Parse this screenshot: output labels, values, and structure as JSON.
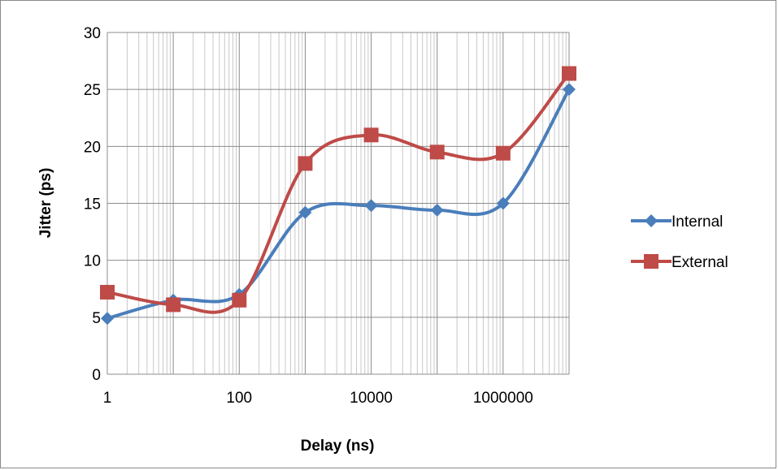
{
  "chart_data": {
    "type": "line",
    "title": "",
    "xlabel": "Delay (ns)",
    "ylabel": "Jitter (ps)",
    "x_scale": "log",
    "xlim": [
      1,
      10000000
    ],
    "ylim": [
      0,
      30
    ],
    "x_ticks": [
      1,
      100,
      10000,
      1000000
    ],
    "x_tick_labels": [
      "1",
      "100",
      "10000",
      "1000000"
    ],
    "y_ticks": [
      0,
      5,
      10,
      15,
      20,
      25,
      30
    ],
    "y_tick_labels": [
      "0",
      "5",
      "10",
      "15",
      "20",
      "25",
      "30"
    ],
    "grid": true,
    "legend_position": "right",
    "x": [
      1,
      10,
      100,
      1000,
      10000,
      100000,
      1000000,
      10000000
    ],
    "series": [
      {
        "name": "Internal",
        "color": "#4a7ebb",
        "marker": "diamond",
        "values": [
          4.9,
          6.5,
          7.0,
          14.2,
          14.8,
          14.4,
          15.0,
          25.0
        ]
      },
      {
        "name": "External",
        "color": "#be4b48",
        "marker": "square",
        "values": [
          7.2,
          6.1,
          6.5,
          18.5,
          21.0,
          19.5,
          19.4,
          26.4
        ]
      }
    ]
  }
}
